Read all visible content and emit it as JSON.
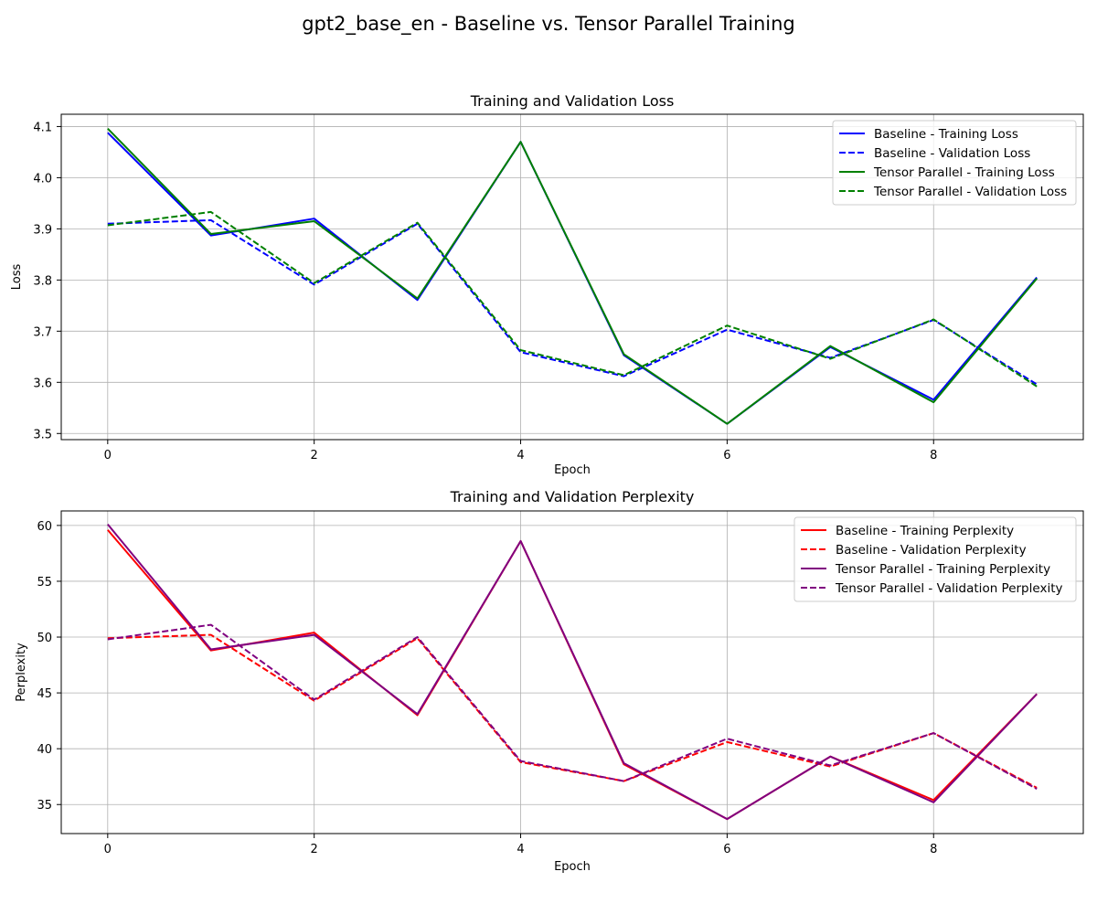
{
  "figure": {
    "title": "gpt2_base_en - Baseline vs. Tensor Parallel Training"
  },
  "chart_data": [
    {
      "type": "line",
      "title": "Training and Validation Loss",
      "xlabel": "Epoch",
      "ylabel": "Loss",
      "x": [
        0,
        1,
        2,
        3,
        4,
        5,
        6,
        7,
        8,
        9
      ],
      "xlim": [
        -0.45,
        9.45
      ],
      "ylim": [
        3.488,
        4.124
      ],
      "xticks": [
        0,
        2,
        4,
        6,
        8
      ],
      "yticks": [
        3.5,
        3.6,
        3.7,
        3.8,
        3.9,
        4.0,
        4.1
      ],
      "ytick_decimals": 1,
      "grid": true,
      "legend_position": "top-right",
      "series": [
        {
          "name": "Baseline - Training Loss",
          "color": "#0000ff",
          "dash": "solid",
          "values": [
            4.088,
            3.887,
            3.92,
            3.761,
            4.07,
            3.653,
            3.519,
            3.669,
            3.566,
            3.805
          ]
        },
        {
          "name": "Baseline - Validation Loss",
          "color": "#0000ff",
          "dash": "dashed",
          "values": [
            3.91,
            3.917,
            3.791,
            3.91,
            3.659,
            3.612,
            3.703,
            3.648,
            3.722,
            3.596
          ]
        },
        {
          "name": "Tensor Parallel - Training Loss",
          "color": "#008000",
          "dash": "solid",
          "values": [
            4.096,
            3.89,
            3.915,
            3.764,
            4.07,
            3.655,
            3.519,
            3.671,
            3.561,
            3.803
          ]
        },
        {
          "name": "Tensor Parallel - Validation Loss",
          "color": "#008000",
          "dash": "dashed",
          "values": [
            3.907,
            3.933,
            3.794,
            3.912,
            3.663,
            3.614,
            3.711,
            3.646,
            3.723,
            3.592
          ]
        }
      ]
    },
    {
      "type": "line",
      "title": "Training and Validation Perplexity",
      "xlabel": "Epoch",
      "ylabel": "Perplexity",
      "x": [
        0,
        1,
        2,
        3,
        4,
        5,
        6,
        7,
        8,
        9
      ],
      "xlim": [
        -0.45,
        9.45
      ],
      "ylim": [
        32.4,
        61.3
      ],
      "xticks": [
        0,
        2,
        4,
        6,
        8
      ],
      "yticks": [
        35,
        40,
        45,
        50,
        55,
        60
      ],
      "ytick_decimals": 0,
      "grid": true,
      "legend_position": "top-right",
      "series": [
        {
          "name": "Baseline - Training Perplexity",
          "color": "#ff0000",
          "dash": "solid",
          "values": [
            59.6,
            48.8,
            50.4,
            43.0,
            58.6,
            38.6,
            33.7,
            39.3,
            35.4,
            44.9
          ]
        },
        {
          "name": "Baseline - Validation Perplexity",
          "color": "#ff0000",
          "dash": "dashed",
          "values": [
            49.9,
            50.2,
            44.3,
            49.9,
            38.8,
            37.1,
            40.6,
            38.4,
            41.4,
            36.5
          ]
        },
        {
          "name": "Tensor Parallel - Training Perplexity",
          "color": "#800080",
          "dash": "solid",
          "values": [
            60.1,
            48.9,
            50.2,
            43.1,
            58.6,
            38.7,
            33.7,
            39.3,
            35.2,
            44.9
          ]
        },
        {
          "name": "Tensor Parallel - Validation Perplexity",
          "color": "#800080",
          "dash": "dashed",
          "values": [
            49.8,
            51.1,
            44.4,
            50.0,
            38.9,
            37.1,
            40.9,
            38.5,
            41.4,
            36.4
          ]
        }
      ]
    }
  ]
}
